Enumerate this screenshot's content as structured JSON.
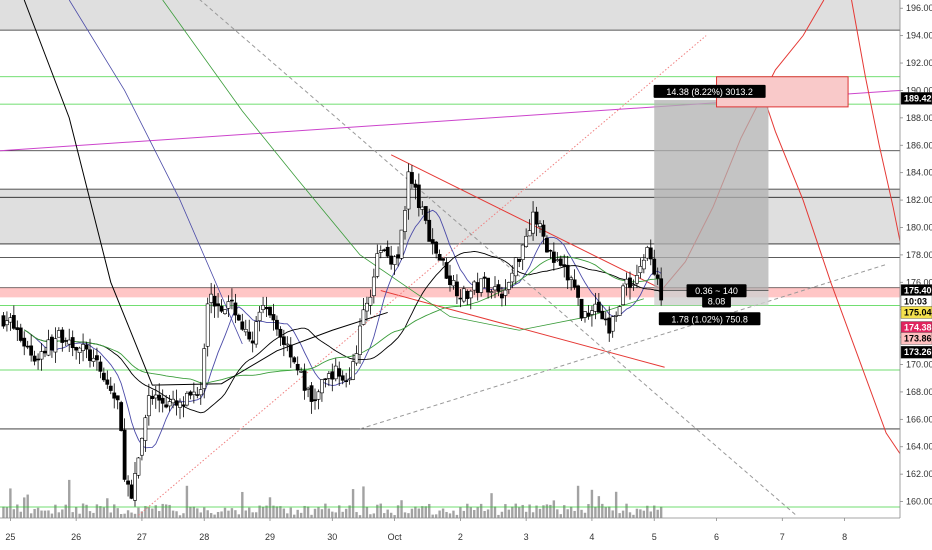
{
  "chart_data": {
    "type": "candlestick",
    "title": "",
    "xlabel": "",
    "ylabel": "",
    "ylim": [
      158.8,
      196.6
    ],
    "xlim": [
      0,
      13
    ],
    "grid": false,
    "y_ticks": [
      160,
      162,
      164,
      166,
      168,
      170,
      172,
      174,
      176,
      178,
      180,
      182,
      184,
      186,
      188,
      190,
      192,
      194,
      196
    ],
    "x_ticks": [
      {
        "x": 0.15,
        "label": "25"
      },
      {
        "x": 1.1,
        "label": "26"
      },
      {
        "x": 2.05,
        "label": "27"
      },
      {
        "x": 2.95,
        "label": "28"
      },
      {
        "x": 3.9,
        "label": "29"
      },
      {
        "x": 4.8,
        "label": "30"
      },
      {
        "x": 5.7,
        "label": "Oct"
      },
      {
        "x": 6.65,
        "label": "2"
      },
      {
        "x": 7.6,
        "label": "3"
      },
      {
        "x": 8.55,
        "label": "4"
      },
      {
        "x": 9.45,
        "label": "5"
      },
      {
        "x": 10.35,
        "label": "6"
      },
      {
        "x": 11.3,
        "label": "7"
      },
      {
        "x": 12.2,
        "label": "8"
      }
    ],
    "price_key_points": [
      [
        0.1,
        173.4
      ],
      [
        0.5,
        170.5
      ],
      [
        0.9,
        172.2
      ],
      [
        1.3,
        170.6
      ],
      [
        1.7,
        167.2
      ],
      [
        1.8,
        162.2
      ],
      [
        1.9,
        159.9
      ],
      [
        2.15,
        167.8
      ],
      [
        2.6,
        166.8
      ],
      [
        2.9,
        168.5
      ],
      [
        3.0,
        174.9
      ],
      [
        3.4,
        174.0
      ],
      [
        3.6,
        171.5
      ],
      [
        3.8,
        174.0
      ],
      [
        4.2,
        171.0
      ],
      [
        4.5,
        167.2
      ],
      [
        4.8,
        169.5
      ],
      [
        5.05,
        168.8
      ],
      [
        5.2,
        172.5
      ],
      [
        5.5,
        178.5
      ],
      [
        5.75,
        177.5
      ],
      [
        5.9,
        183.8
      ],
      [
        6.0,
        182.5
      ],
      [
        6.25,
        178.8
      ],
      [
        6.5,
        176.2
      ],
      [
        6.7,
        175.0
      ],
      [
        7.0,
        176.0
      ],
      [
        7.3,
        175.2
      ],
      [
        7.7,
        181.0
      ],
      [
        8.0,
        177.5
      ],
      [
        8.3,
        175.8
      ],
      [
        8.4,
        173.5
      ],
      [
        8.6,
        174.5
      ],
      [
        8.8,
        172.5
      ],
      [
        9.0,
        175.5
      ],
      [
        9.2,
        176.5
      ],
      [
        9.35,
        178.5
      ],
      [
        9.5,
        175.8
      ],
      [
        9.55,
        175.3
      ]
    ],
    "volume_max": 165,
    "volume_scale_note": "",
    "series": [
      {
        "name": "",
        "color": "#000000",
        "role": "ma-slow"
      },
      {
        "name": "",
        "color": "#4b4ba8",
        "role": "ma-mid"
      },
      {
        "name": "",
        "color": "#3a9c3a",
        "role": "ma-green"
      }
    ],
    "horizontal_levels": [
      {
        "y": 194.4,
        "color": "#000000"
      },
      {
        "y": 191.0,
        "color": "#22cc22"
      },
      {
        "y": 189.0,
        "color": "#22cc22"
      },
      {
        "y": 185.6,
        "color": "#000000"
      },
      {
        "y": 182.8,
        "color": "#000000"
      },
      {
        "y": 182.2,
        "color": "#000000"
      },
      {
        "y": 178.8,
        "color": "#000000"
      },
      {
        "y": 177.8,
        "color": "#000000"
      },
      {
        "y": 175.6,
        "color": "#000000"
      },
      {
        "y": 174.3,
        "color": "#22cc22"
      },
      {
        "y": 169.6,
        "color": "#22cc22"
      },
      {
        "y": 165.3,
        "color": "#000000"
      },
      {
        "y": 159.6,
        "color": "#22cc22"
      }
    ],
    "shaded_zones": [
      {
        "y0": 194.4,
        "y1": 196.8,
        "color": "#dcdcdc"
      },
      {
        "y0": 178.8,
        "y1": 182.8,
        "color": "#dcdcdc"
      }
    ],
    "resistance_band": {
      "y0": 174.9,
      "y1": 175.6,
      "color": "#ff8080"
    },
    "trend_lines": [
      {
        "from": [
          5.65,
          185.3
        ],
        "to": [
          9.6,
          175.4
        ],
        "color": "#e53935",
        "style": "solid"
      },
      {
        "from": [
          5.5,
          175.4
        ],
        "to": [
          9.6,
          169.8
        ],
        "color": "#e53935",
        "style": "solid"
      },
      {
        "from": [
          2.0,
          159.0
        ],
        "to": [
          10.2,
          194.0
        ],
        "color": "#f08080",
        "style": "dotted"
      },
      {
        "from": [
          5.2,
          165.3
        ],
        "to": [
          12.8,
          177.3
        ],
        "color": "#999999",
        "style": "dashed"
      },
      {
        "from": [
          2.8,
          197.0
        ],
        "to": [
          11.5,
          159.0
        ],
        "color": "#999999",
        "style": "dashed"
      },
      {
        "from": [
          0.0,
          185.6
        ],
        "to": [
          13.0,
          190.0
        ],
        "color": "#cc44cc",
        "style": "solid"
      }
    ],
    "position_tool": {
      "x0": 9.45,
      "x1": 11.1,
      "target": 189.3,
      "entry": 175.4,
      "stop": 174.3,
      "profit_color": "#b0b0b0",
      "loss_color": "#cfcfcf"
    },
    "callout_box": {
      "x0": 10.35,
      "x1": 12.25,
      "y0": 188.8,
      "y1": 191.0,
      "color": "#f9c9c9",
      "border": "#d33"
    },
    "annotations": [
      {
        "text": "14.38 (8.22%) 3013.2",
        "x": 10.25,
        "y": 189.9,
        "bg": "#000000"
      },
      {
        "text": "0.36 ~ 140",
        "x": 10.35,
        "y": 175.35,
        "bg": "#000000"
      },
      {
        "text": "8.08",
        "x": 10.35,
        "y": 174.6,
        "bg": "#000000"
      },
      {
        "text": "1.78 (1.02%) 750.8",
        "x": 10.25,
        "y": 173.3,
        "bg": "#000000"
      }
    ],
    "price_tags": [
      {
        "text": "189.42",
        "y": 189.42,
        "bg": "#000000",
        "fg": "#ffffff"
      },
      {
        "text": "175.40",
        "y": 175.4,
        "bg": "#000000",
        "fg": "#ffffff"
      },
      {
        "text": "10:03",
        "y": 174.6,
        "bg": "#ffffff",
        "fg": "#000000"
      },
      {
        "text": "175.04",
        "y": 175.04,
        "bg": "#f4e04d",
        "fg": "#000000",
        "y_draw": 173.8
      },
      {
        "text": "174.38",
        "y": 174.38,
        "bg": "#e0245e",
        "fg": "#ffffff",
        "y_draw": 172.7
      },
      {
        "text": "173.86",
        "y": 173.86,
        "bg": "#ffc0c0",
        "fg": "#000000",
        "y_draw": 171.9
      },
      {
        "text": "173.26",
        "y": 173.26,
        "bg": "#000000",
        "fg": "#ffffff",
        "y_draw": 170.9
      }
    ],
    "colors": {
      "up": "#000000",
      "down": "#000000",
      "volume": "#555555"
    }
  }
}
